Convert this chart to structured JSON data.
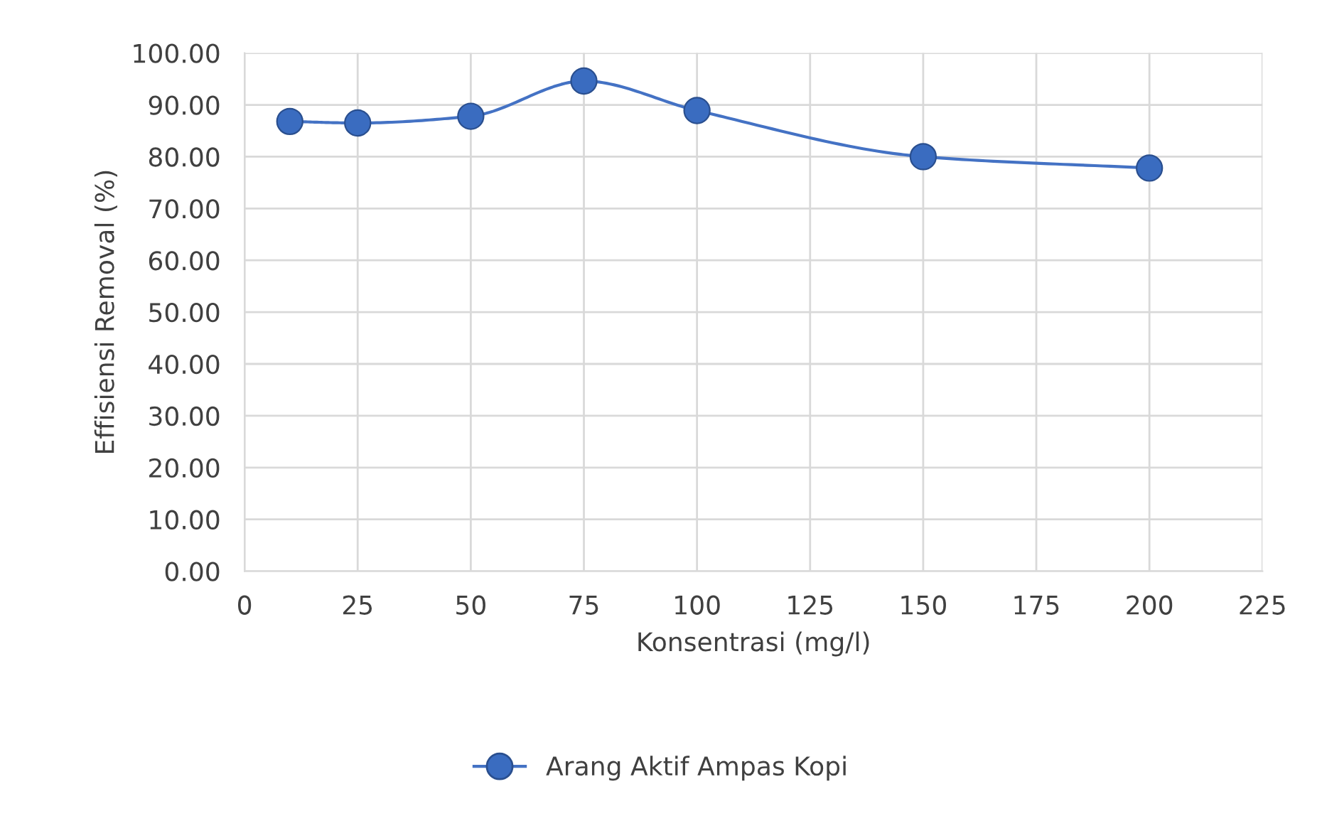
{
  "chart_data": {
    "type": "line",
    "xlabel": "Konsentrasi (mg/l)",
    "ylabel": "Effisiensi Removal (%)",
    "x": [
      10,
      25,
      50,
      75,
      100,
      150,
      200
    ],
    "series": [
      {
        "name": "Arang Aktif Ampas Kopi",
        "color": "#4472c4",
        "values": [
          86.8,
          86.5,
          87.8,
          94.6,
          88.9,
          80.0,
          77.8
        ]
      }
    ],
    "xlim": [
      0,
      225
    ],
    "xticks": [
      0,
      25,
      50,
      75,
      100,
      125,
      150,
      175,
      200,
      225
    ],
    "ylim": [
      0,
      100
    ],
    "yticks": [
      {
        "value": 0,
        "label": "0.00"
      },
      {
        "value": 10,
        "label": "10.00"
      },
      {
        "value": 20,
        "label": "20.00"
      },
      {
        "value": 30,
        "label": "30.00"
      },
      {
        "value": 40,
        "label": "40.00"
      },
      {
        "value": 50,
        "label": "50.00"
      },
      {
        "value": 60,
        "label": "60.00"
      },
      {
        "value": 70,
        "label": "70.00"
      },
      {
        "value": 80,
        "label": "80.00"
      },
      {
        "value": 90,
        "label": "90.00"
      },
      {
        "value": 100,
        "label": "100.00"
      }
    ],
    "grid": true,
    "legend": "bottom",
    "marker": "circle",
    "line_style": "solid"
  }
}
